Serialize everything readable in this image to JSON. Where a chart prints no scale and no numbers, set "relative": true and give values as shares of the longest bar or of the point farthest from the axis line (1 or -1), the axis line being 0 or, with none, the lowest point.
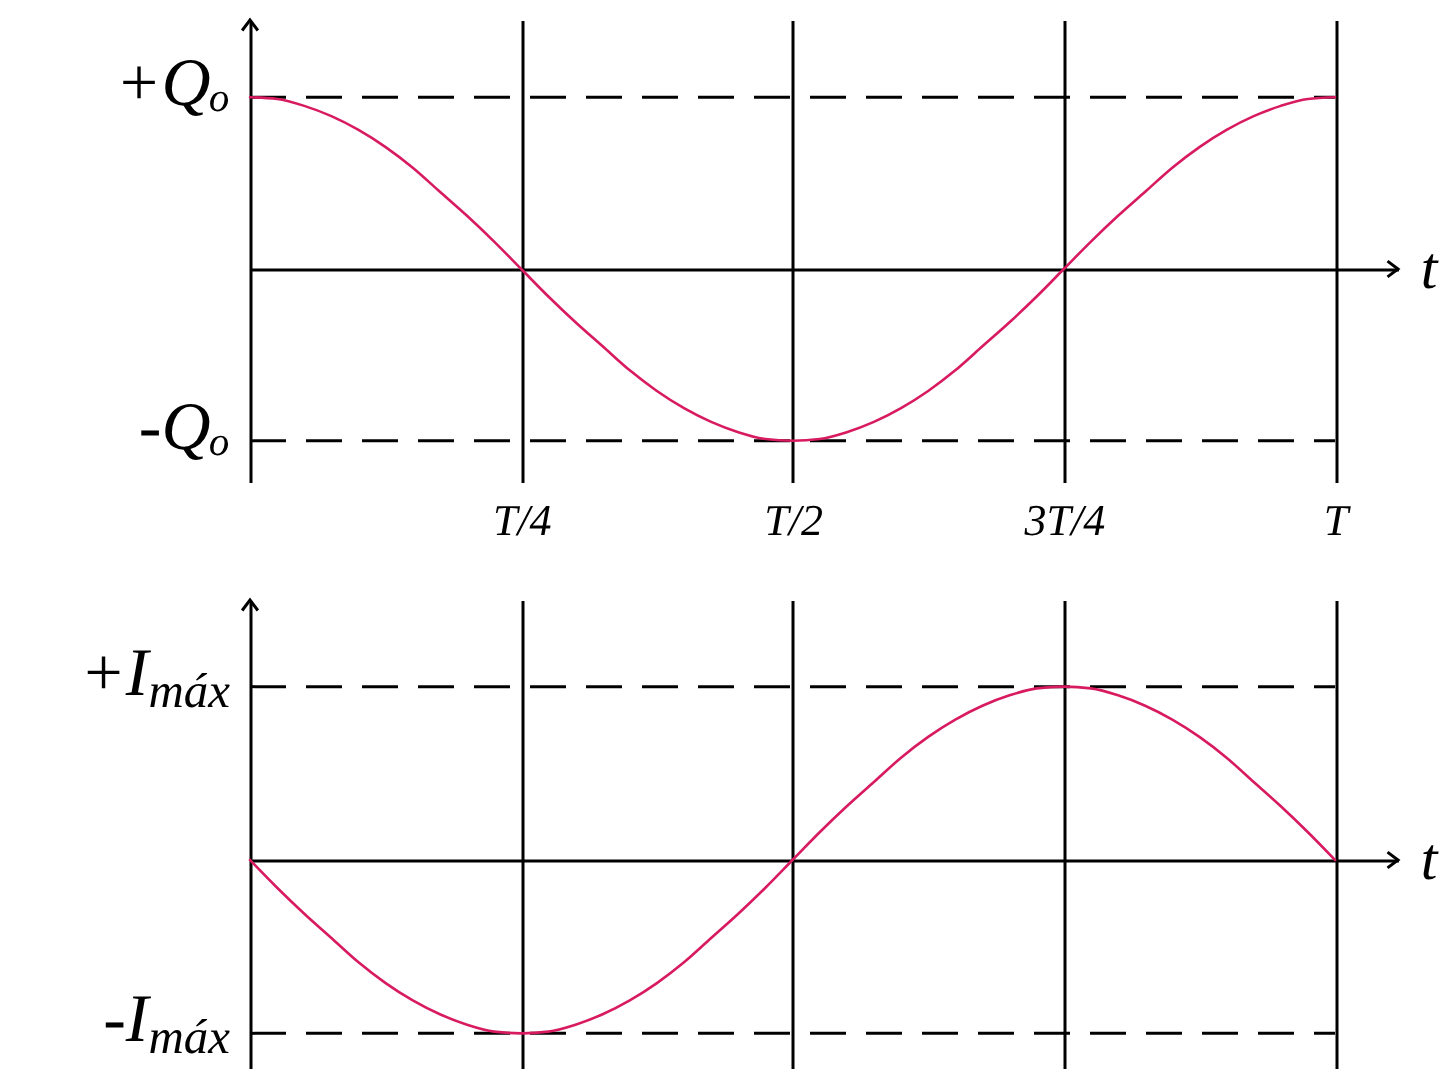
{
  "chart_data": [
    {
      "type": "line",
      "xlabel": "t",
      "categories": [
        null,
        null,
        null,
        null,
        null,
        null,
        null,
        null,
        null,
        null,
        "T/4",
        null,
        null,
        null,
        null,
        null,
        null,
        null,
        null,
        null,
        "T/2",
        null,
        null,
        null,
        null,
        null,
        null,
        null,
        null,
        null,
        "3T/4",
        null,
        null,
        null,
        null,
        null,
        null,
        null,
        null,
        null,
        "T"
      ],
      "series": [
        {
          "color": "#d81b60",
          "values": [
            1,
            0.99,
            0.95,
            0.89,
            0.81,
            0.71,
            0.59,
            0.45,
            0.31,
            0.16,
            0,
            -0.16,
            -0.31,
            -0.45,
            -0.59,
            -0.71,
            -0.81,
            -0.89,
            -0.95,
            -0.99,
            -1,
            -0.99,
            -0.95,
            -0.89,
            -0.81,
            -0.71,
            -0.59,
            -0.45,
            -0.31,
            -0.16,
            0,
            0.16,
            0.31,
            0.45,
            0.59,
            0.71,
            0.81,
            0.89,
            0.95,
            0.99,
            1
          ]
        }
      ],
      "relative": true,
      "grid": "x",
      "marker": "none",
      "tick_labels": "x",
      "ref_lines": [
        {
          "axis": "y",
          "value": 1,
          "label": "+Qₒ",
          "line_style": "dashed"
        },
        {
          "axis": "y",
          "value": -1,
          "label": "-Qₒ",
          "line_style": "dashed"
        }
      ]
    },
    {
      "type": "line",
      "xlabel": "t",
      "categories": [
        null,
        null,
        null,
        null,
        null,
        null,
        null,
        null,
        null,
        null,
        null,
        null,
        null,
        null,
        null,
        null,
        null,
        null,
        null,
        null,
        null,
        null,
        null,
        null,
        null,
        null,
        null,
        null,
        null,
        null,
        null,
        null,
        null,
        null,
        null,
        null,
        null,
        null,
        null,
        null,
        null
      ],
      "series": [
        {
          "color": "#d81b60",
          "values": [
            0,
            -0.16,
            -0.31,
            -0.45,
            -0.59,
            -0.71,
            -0.81,
            -0.89,
            -0.95,
            -0.99,
            -1,
            -0.99,
            -0.95,
            -0.89,
            -0.81,
            -0.71,
            -0.59,
            -0.45,
            -0.31,
            -0.16,
            0,
            0.16,
            0.31,
            0.45,
            0.59,
            0.71,
            0.81,
            0.89,
            0.95,
            0.99,
            1,
            0.99,
            0.95,
            0.89,
            0.81,
            0.71,
            0.59,
            0.45,
            0.31,
            0.16,
            0
          ]
        }
      ],
      "relative": true,
      "grid": "x",
      "marker": "none",
      "tick_labels": false,
      "ref_lines": [
        {
          "axis": "y",
          "value": 1,
          "label": "+I$_{máx}$",
          "line_style": "dashed"
        },
        {
          "axis": "y",
          "value": -1,
          "label": "-I$_{máx}$",
          "line_style": "dashed"
        }
      ]
    }
  ]
}
